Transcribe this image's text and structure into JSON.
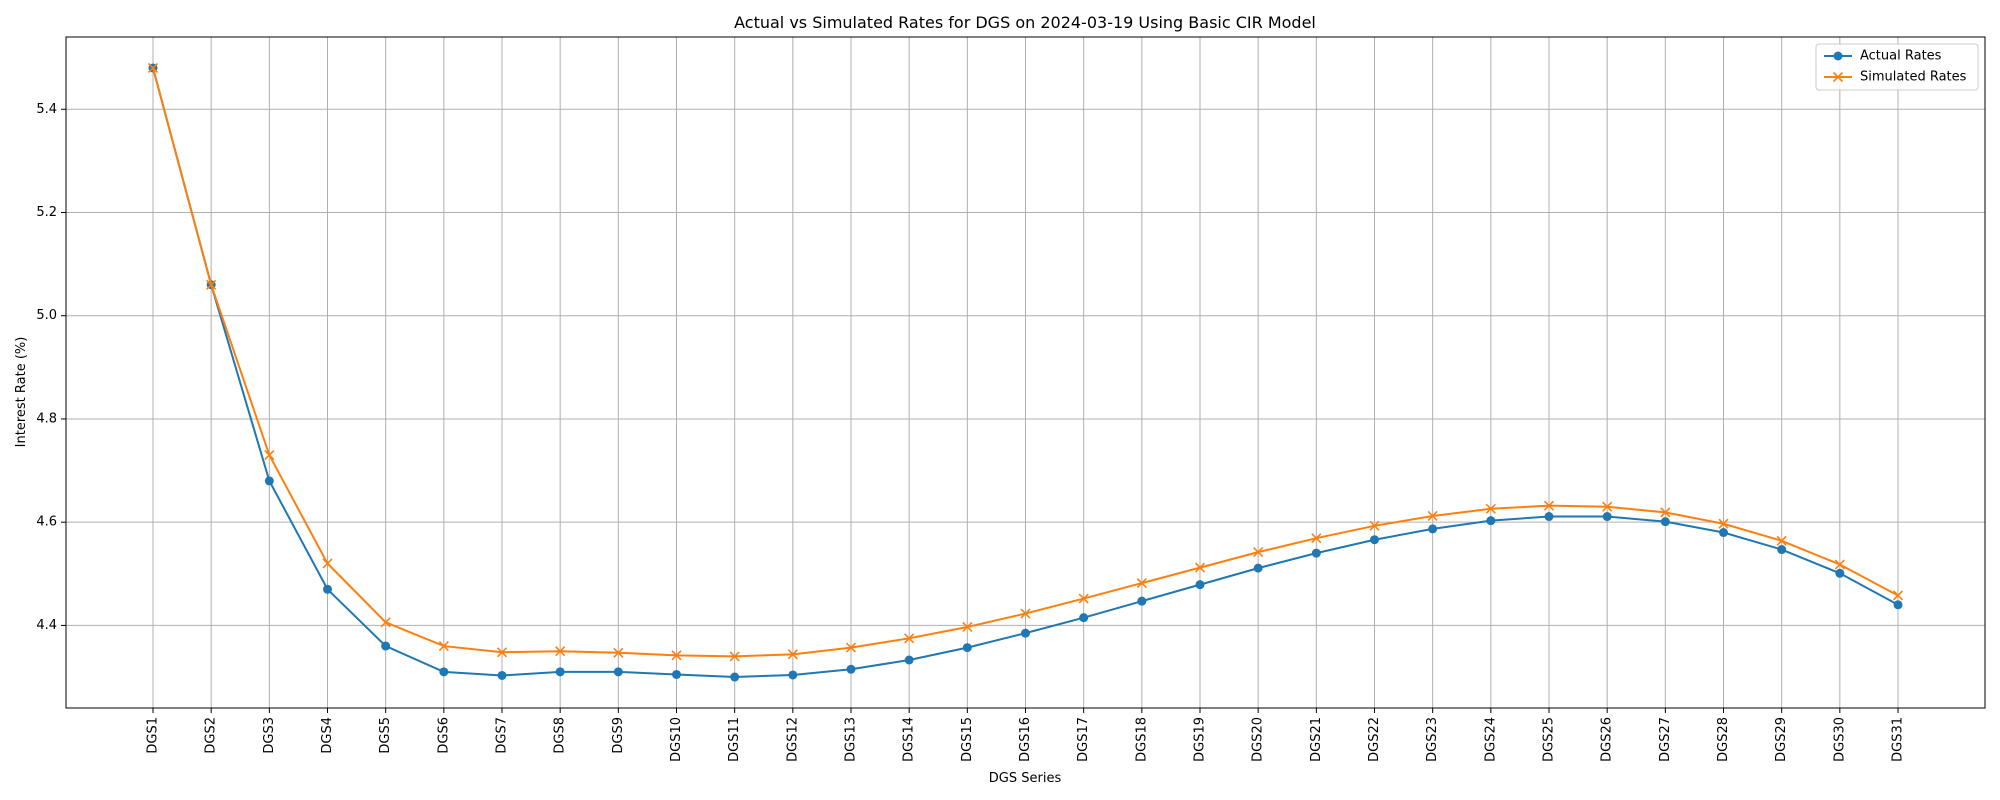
{
  "chart_data": {
    "type": "line",
    "title": "Actual vs Simulated Rates for DGS on 2024-03-19 Using Basic CIR Model",
    "xlabel": "DGS Series",
    "ylabel": "Interest Rate (%)",
    "categories": [
      "DGS1",
      "DGS2",
      "DGS3",
      "DGS4",
      "DGS5",
      "DGS6",
      "DGS7",
      "DGS8",
      "DGS9",
      "DGS10",
      "DGS11",
      "DGS12",
      "DGS13",
      "DGS14",
      "DGS15",
      "DGS16",
      "DGS17",
      "DGS18",
      "DGS19",
      "DGS20",
      "DGS21",
      "DGS22",
      "DGS23",
      "DGS24",
      "DGS25",
      "DGS26",
      "DGS27",
      "DGS28",
      "DGS29",
      "DGS30",
      "DGS31"
    ],
    "ylim": [
      4.24,
      5.54
    ],
    "yticks": [
      4.4,
      4.6,
      4.8,
      5.0,
      5.2,
      5.4
    ],
    "grid": true,
    "legend_position": "top-right",
    "series": [
      {
        "name": "Actual Rates",
        "color": "#1f77b4",
        "marker": "circle",
        "values": [
          5.48,
          5.06,
          4.68,
          4.47,
          4.36,
          4.31,
          4.303,
          4.31,
          4.31,
          4.305,
          4.3,
          4.304,
          4.315,
          4.333,
          4.357,
          4.385,
          4.415,
          4.447,
          4.479,
          4.511,
          4.54,
          4.566,
          4.587,
          4.603,
          4.611,
          4.611,
          4.601,
          4.58,
          4.547,
          4.501,
          4.44
        ]
      },
      {
        "name": "Simulated Rates",
        "color": "#ff7f0e",
        "marker": "x",
        "values": [
          5.48,
          5.06,
          4.73,
          4.52,
          4.406,
          4.36,
          4.348,
          4.35,
          4.347,
          4.342,
          4.34,
          4.344,
          4.357,
          4.375,
          4.397,
          4.423,
          4.452,
          4.482,
          4.512,
          4.542,
          4.569,
          4.593,
          4.612,
          4.626,
          4.632,
          4.63,
          4.619,
          4.597,
          4.564,
          4.518,
          4.458
        ]
      }
    ]
  }
}
